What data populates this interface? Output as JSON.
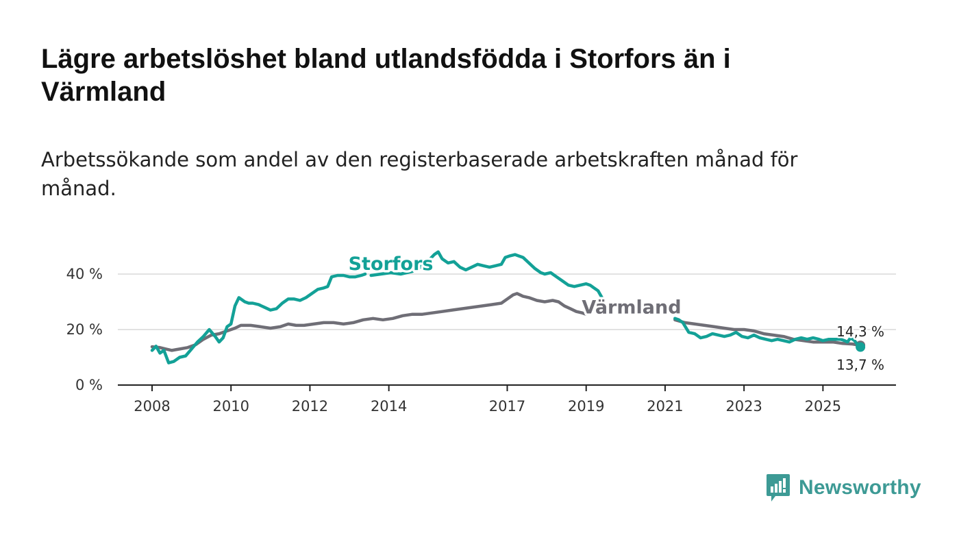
{
  "title": "Lägre arbetslöshet bland utlandsfödda i Storfors än i Värmland",
  "subtitle": "Arbetssökande som andel av den registerbaserade arbetskraften månad för månad.",
  "brand": {
    "name": "Newsworthy",
    "color": "#3d9a95"
  },
  "chart_data": {
    "type": "line",
    "ylim": [
      0,
      50
    ],
    "xlim": [
      2008.0,
      2026.0
    ],
    "yticks": [
      {
        "value": 0,
        "label": "0 %"
      },
      {
        "value": 20,
        "label": "20 %"
      },
      {
        "value": 40,
        "label": "40 %"
      }
    ],
    "xticks": [
      {
        "value": 2008,
        "label": "2008"
      },
      {
        "value": 2010,
        "label": "2010"
      },
      {
        "value": 2012,
        "label": "2012"
      },
      {
        "value": 2014,
        "label": "2014"
      },
      {
        "value": 2017,
        "label": "2017"
      },
      {
        "value": 2019,
        "label": "2019"
      },
      {
        "value": 2021,
        "label": "2021"
      },
      {
        "value": 2023,
        "label": "2023"
      },
      {
        "value": 2025,
        "label": "2025"
      }
    ],
    "grid": true,
    "series": [
      {
        "name": "Storfors",
        "color": "#13a197",
        "end_label": "13,7 %",
        "segments": [
          [
            [
              2008.0,
              12.5
            ],
            [
              2008.1,
              14.0
            ],
            [
              2008.2,
              11.5
            ],
            [
              2008.3,
              12.5
            ],
            [
              2008.42,
              8.0
            ],
            [
              2008.55,
              8.5
            ],
            [
              2008.7,
              10.0
            ],
            [
              2008.85,
              10.5
            ],
            [
              2009.0,
              13.0
            ],
            [
              2009.15,
              15.5
            ],
            [
              2009.3,
              17.5
            ],
            [
              2009.45,
              20.0
            ],
            [
              2009.6,
              17.5
            ],
            [
              2009.7,
              15.5
            ],
            [
              2009.8,
              17.0
            ],
            [
              2009.9,
              21.0
            ],
            [
              2010.0,
              22.0
            ],
            [
              2010.1,
              28.5
            ],
            [
              2010.2,
              31.5
            ],
            [
              2010.35,
              30.0
            ],
            [
              2010.45,
              29.5
            ],
            [
              2010.55,
              29.5
            ],
            [
              2010.7,
              29.0
            ],
            [
              2010.85,
              28.0
            ],
            [
              2011.0,
              27.0
            ],
            [
              2011.15,
              27.5
            ],
            [
              2011.3,
              29.5
            ],
            [
              2011.45,
              31.0
            ],
            [
              2011.6,
              31.0
            ],
            [
              2011.75,
              30.5
            ],
            [
              2011.9,
              31.5
            ],
            [
              2012.05,
              33.0
            ],
            [
              2012.2,
              34.5
            ],
            [
              2012.35,
              35.0
            ],
            [
              2012.45,
              35.5
            ],
            [
              2012.55,
              39.0
            ],
            [
              2012.7,
              39.5
            ],
            [
              2012.85,
              39.5
            ],
            [
              2013.0,
              39.0
            ],
            [
              2013.15,
              39.0
            ],
            [
              2013.3,
              39.5
            ],
            [
              2013.4,
              40.0
            ]
          ],
          [
            [
              2013.55,
              39.5
            ],
            [
              2013.8,
              40.0
            ],
            [
              2014.05,
              40.5
            ],
            [
              2014.3,
              40.0
            ],
            [
              2014.6,
              41.0
            ],
            [
              2014.8,
              42.5
            ],
            [
              2014.95,
              44.5
            ],
            [
              2015.05,
              45.5
            ],
            [
              2015.15,
              47.0
            ],
            [
              2015.25,
              48.0
            ],
            [
              2015.35,
              45.5
            ],
            [
              2015.5,
              44.0
            ],
            [
              2015.65,
              44.5
            ],
            [
              2015.8,
              42.5
            ],
            [
              2015.95,
              41.5
            ],
            [
              2016.1,
              42.5
            ],
            [
              2016.25,
              43.5
            ],
            [
              2016.4,
              43.0
            ],
            [
              2016.55,
              42.5
            ],
            [
              2016.7,
              43.0
            ],
            [
              2016.85,
              43.5
            ],
            [
              2016.95,
              46.0
            ],
            [
              2017.05,
              46.5
            ],
            [
              2017.2,
              47.0
            ],
            [
              2017.3,
              46.5
            ],
            [
              2017.4,
              46.0
            ],
            [
              2017.55,
              44.0
            ],
            [
              2017.7,
              42.0
            ],
            [
              2017.85,
              40.5
            ],
            [
              2017.95,
              40.0
            ],
            [
              2018.1,
              40.5
            ],
            [
              2018.25,
              39.0
            ],
            [
              2018.4,
              37.5
            ],
            [
              2018.55,
              36.0
            ],
            [
              2018.7,
              35.5
            ],
            [
              2018.85,
              36.0
            ],
            [
              2019.0,
              36.5
            ],
            [
              2019.1,
              36.0
            ],
            [
              2019.2,
              35.0
            ],
            [
              2019.3,
              34.0
            ],
            [
              2019.42,
              31.0
            ]
          ],
          [
            [
              2021.25,
              24.0
            ],
            [
              2021.35,
              23.5
            ],
            [
              2021.45,
              22.5
            ],
            [
              2021.6,
              19.0
            ],
            [
              2021.75,
              18.5
            ],
            [
              2021.9,
              17.0
            ],
            [
              2022.05,
              17.5
            ],
            [
              2022.2,
              18.5
            ],
            [
              2022.35,
              18.0
            ],
            [
              2022.5,
              17.5
            ],
            [
              2022.65,
              18.0
            ],
            [
              2022.8,
              19.0
            ],
            [
              2022.95,
              17.5
            ],
            [
              2023.1,
              17.0
            ],
            [
              2023.25,
              18.0
            ],
            [
              2023.4,
              17.0
            ],
            [
              2023.55,
              16.5
            ],
            [
              2023.7,
              16.0
            ],
            [
              2023.85,
              16.5
            ],
            [
              2024.0,
              16.0
            ],
            [
              2024.15,
              15.5
            ],
            [
              2024.3,
              16.5
            ],
            [
              2024.45,
              17.0
            ],
            [
              2024.6,
              16.5
            ],
            [
              2024.75,
              17.0
            ],
            [
              2024.9,
              16.5
            ],
            [
              2025.0,
              16.0
            ],
            [
              2025.15,
              16.5
            ],
            [
              2025.3,
              16.5
            ],
            [
              2025.45,
              16.5
            ],
            [
              2025.55,
              16.0
            ],
            [
              2025.62,
              15.5
            ],
            [
              2025.7,
              17.0
            ],
            [
              2025.8,
              16.0
            ],
            [
              2025.88,
              14.5
            ],
            [
              2025.92,
              13.0
            ],
            [
              2025.95,
              13.7
            ]
          ]
        ]
      },
      {
        "name": "Värmland",
        "color": "#6f6e76",
        "end_label": "14,3 %",
        "segments": [
          [
            [
              2008.0,
              13.8
            ],
            [
              2008.2,
              13.5
            ],
            [
              2008.35,
              13.0
            ],
            [
              2008.5,
              12.5
            ],
            [
              2008.7,
              13.0
            ],
            [
              2008.9,
              13.5
            ],
            [
              2009.1,
              14.5
            ],
            [
              2009.3,
              16.5
            ],
            [
              2009.5,
              18.0
            ],
            [
              2009.7,
              18.5
            ],
            [
              2009.9,
              19.5
            ],
            [
              2010.1,
              20.5
            ],
            [
              2010.25,
              21.5
            ],
            [
              2010.5,
              21.5
            ],
            [
              2010.75,
              21.0
            ],
            [
              2011.0,
              20.5
            ],
            [
              2011.25,
              21.0
            ],
            [
              2011.45,
              22.0
            ],
            [
              2011.65,
              21.5
            ],
            [
              2011.85,
              21.5
            ],
            [
              2012.1,
              22.0
            ],
            [
              2012.35,
              22.5
            ],
            [
              2012.6,
              22.5
            ],
            [
              2012.85,
              22.0
            ],
            [
              2013.1,
              22.5
            ],
            [
              2013.35,
              23.5
            ],
            [
              2013.6,
              24.0
            ],
            [
              2013.85,
              23.5
            ],
            [
              2014.1,
              24.0
            ],
            [
              2014.35,
              25.0
            ],
            [
              2014.6,
              25.5
            ],
            [
              2014.85,
              25.5
            ],
            [
              2015.1,
              26.0
            ],
            [
              2015.35,
              26.5
            ],
            [
              2015.6,
              27.0
            ],
            [
              2015.85,
              27.5
            ],
            [
              2016.1,
              28.0
            ],
            [
              2016.35,
              28.5
            ],
            [
              2016.6,
              29.0
            ],
            [
              2016.85,
              29.5
            ],
            [
              2017.0,
              31.0
            ],
            [
              2017.15,
              32.5
            ],
            [
              2017.25,
              33.0
            ],
            [
              2017.4,
              32.0
            ],
            [
              2017.55,
              31.5
            ],
            [
              2017.75,
              30.5
            ],
            [
              2017.95,
              30.0
            ],
            [
              2018.15,
              30.5
            ],
            [
              2018.3,
              30.0
            ],
            [
              2018.45,
              28.5
            ],
            [
              2018.6,
              27.5
            ],
            [
              2018.75,
              26.5
            ],
            [
              2018.9,
              26.0
            ],
            [
              2019.0,
              25.5
            ]
          ],
          [
            [
              2021.25,
              23.5
            ],
            [
              2021.5,
              22.5
            ],
            [
              2021.75,
              22.0
            ],
            [
              2022.0,
              21.5
            ],
            [
              2022.25,
              21.0
            ],
            [
              2022.5,
              20.5
            ],
            [
              2022.75,
              20.0
            ],
            [
              2023.0,
              20.0
            ],
            [
              2023.25,
              19.5
            ],
            [
              2023.5,
              18.5
            ],
            [
              2023.75,
              18.0
            ],
            [
              2024.0,
              17.5
            ],
            [
              2024.25,
              16.5
            ],
            [
              2024.5,
              16.0
            ],
            [
              2024.75,
              15.5
            ],
            [
              2025.0,
              15.5
            ],
            [
              2025.25,
              15.5
            ],
            [
              2025.5,
              15.0
            ],
            [
              2025.75,
              14.8
            ],
            [
              2025.95,
              14.3
            ]
          ]
        ]
      }
    ],
    "series_labels": [
      {
        "series": "Storfors",
        "text": "Storfors",
        "x": 2014.05,
        "y": 41.5
      },
      {
        "series": "Värmland",
        "text": "Värmland",
        "x": 2020.15,
        "y": 25.8
      }
    ],
    "end_labels": [
      {
        "series": "Värmland",
        "text": "14,3 %",
        "x": 2025.95,
        "y": 14.3,
        "position": "above"
      },
      {
        "series": "Storfors",
        "text": "13,7 %",
        "x": 2025.95,
        "y": 13.7,
        "position": "below"
      }
    ]
  }
}
